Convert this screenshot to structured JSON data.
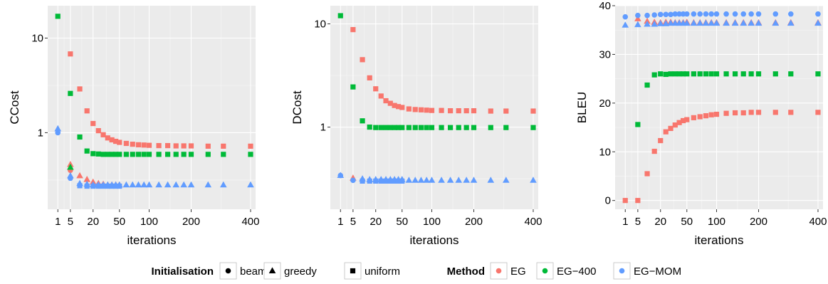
{
  "chart_data": [
    {
      "type": "scatter",
      "xlabel": "iterations",
      "ylabel": "CCost",
      "x_scale": "sqrt",
      "y_scale": "log",
      "xlim": [
        0,
        420
      ],
      "ylim": [
        0.155,
        22
      ],
      "x_ticks": [
        1,
        5,
        20,
        50,
        100,
        200,
        400
      ],
      "x_tick_labels": [
        "1",
        "5",
        "20",
        "50",
        "100",
        "200",
        "400"
      ],
      "y_ticks": [
        1,
        10
      ],
      "y_tick_labels": [
        "1",
        "10"
      ],
      "grid": true,
      "series": [
        {
          "initialisation": "beam",
          "method": "EG",
          "x": [
            5
          ],
          "y": [
            0.4
          ]
        },
        {
          "initialisation": "greedy",
          "method": "EG",
          "x": [
            5,
            10,
            15,
            20,
            25,
            30,
            35,
            40,
            45,
            50
          ],
          "y": [
            0.46,
            0.35,
            0.32,
            0.3,
            0.29,
            0.285,
            0.28,
            0.28,
            0.28,
            0.28
          ]
        },
        {
          "initialisation": "uniform",
          "method": "EG",
          "x": [
            5,
            10,
            15,
            20,
            25,
            30,
            35,
            40,
            45,
            50,
            60,
            70,
            80,
            90,
            100,
            120,
            140,
            160,
            180,
            200,
            250,
            300,
            400
          ],
          "y": [
            6.8,
            2.9,
            1.7,
            1.25,
            1.05,
            0.95,
            0.88,
            0.84,
            0.81,
            0.79,
            0.77,
            0.755,
            0.745,
            0.74,
            0.735,
            0.73,
            0.73,
            0.725,
            0.725,
            0.725,
            0.72,
            0.72,
            0.72
          ]
        },
        {
          "initialisation": "greedy",
          "method": "EG-400",
          "x": [
            5
          ],
          "y": [
            0.43
          ]
        },
        {
          "initialisation": "uniform",
          "method": "EG-400",
          "x": [
            1,
            5,
            10,
            15,
            20,
            25,
            30,
            35,
            40,
            45,
            50,
            60,
            70,
            80,
            90,
            100,
            120,
            140,
            160,
            180,
            200,
            250,
            300,
            400
          ],
          "y": [
            17,
            2.6,
            0.9,
            0.64,
            0.6,
            0.595,
            0.59,
            0.59,
            0.59,
            0.59,
            0.59,
            0.59,
            0.59,
            0.59,
            0.59,
            0.59,
            0.59,
            0.59,
            0.59,
            0.59,
            0.59,
            0.59,
            0.59,
            0.59
          ]
        },
        {
          "initialisation": "beam",
          "method": "EG-MOM",
          "x": [
            1,
            5
          ],
          "y": [
            1.0,
            0.33
          ]
        },
        {
          "initialisation": "greedy",
          "method": "EG-MOM",
          "x": [
            1,
            5,
            10,
            15,
            20,
            25,
            30,
            35,
            40,
            45,
            50,
            60,
            70,
            80,
            90,
            100,
            120,
            140,
            160,
            180,
            200,
            250,
            300,
            400
          ],
          "y": [
            1.1,
            0.35,
            0.29,
            0.285,
            0.28,
            0.28,
            0.28,
            0.28,
            0.28,
            0.28,
            0.28,
            0.28,
            0.28,
            0.28,
            0.28,
            0.28,
            0.28,
            0.28,
            0.28,
            0.28,
            0.28,
            0.28,
            0.28,
            0.28
          ]
        },
        {
          "initialisation": "uniform",
          "method": "EG-MOM",
          "x": [
            10,
            15,
            20,
            25,
            30,
            35,
            40,
            45,
            50
          ],
          "y": [
            0.275,
            0.272,
            0.272,
            0.272,
            0.272,
            0.272,
            0.272,
            0.272,
            0.272
          ]
        }
      ]
    },
    {
      "type": "scatter",
      "xlabel": "iterations",
      "ylabel": "DCost",
      "x_scale": "sqrt",
      "y_scale": "log",
      "xlim": [
        0,
        420
      ],
      "ylim": [
        0.16,
        15
      ],
      "x_ticks": [
        1,
        5,
        20,
        50,
        100,
        200,
        400
      ],
      "x_tick_labels": [
        "1",
        "5",
        "20",
        "50",
        "100",
        "200",
        "400"
      ],
      "y_ticks": [
        1,
        10
      ],
      "y_tick_labels": [
        "1",
        "10"
      ],
      "grid": true,
      "series": [
        {
          "initialisation": "greedy",
          "method": "EG",
          "x": [
            5
          ],
          "y": [
            0.32
          ]
        },
        {
          "initialisation": "uniform",
          "method": "EG",
          "x": [
            5,
            10,
            15,
            20,
            25,
            30,
            35,
            40,
            45,
            50,
            60,
            70,
            80,
            90,
            100,
            120,
            140,
            160,
            180,
            200,
            250,
            300,
            400
          ],
          "y": [
            8.8,
            4.5,
            3.0,
            2.35,
            2.0,
            1.8,
            1.7,
            1.62,
            1.58,
            1.55,
            1.5,
            1.48,
            1.47,
            1.46,
            1.45,
            1.45,
            1.44,
            1.44,
            1.44,
            1.44,
            1.43,
            1.43,
            1.43
          ]
        },
        {
          "initialisation": "uniform",
          "method": "EG-400",
          "x": [
            1,
            5,
            10,
            15,
            20,
            25,
            30,
            35,
            40,
            45,
            50,
            60,
            70,
            80,
            90,
            100,
            120,
            140,
            160,
            180,
            200,
            250,
            300,
            400
          ],
          "y": [
            12,
            2.45,
            1.15,
            1.0,
            0.99,
            0.99,
            0.99,
            0.99,
            0.99,
            0.99,
            0.99,
            0.99,
            0.99,
            0.99,
            0.99,
            0.99,
            0.99,
            0.99,
            0.99,
            0.99,
            0.99,
            0.99,
            0.99,
            0.99
          ]
        },
        {
          "initialisation": "beam",
          "method": "EG-MOM",
          "x": [
            1,
            5
          ],
          "y": [
            0.34,
            0.305
          ]
        },
        {
          "initialisation": "greedy",
          "method": "EG-MOM",
          "x": [
            1,
            10,
            15,
            20,
            25,
            30,
            35,
            40,
            45,
            50,
            60,
            70,
            80,
            90,
            100,
            120,
            140,
            160,
            180,
            200,
            250,
            300,
            400
          ],
          "y": [
            0.34,
            0.315,
            0.31,
            0.31,
            0.31,
            0.31,
            0.31,
            0.31,
            0.31,
            0.31,
            0.305,
            0.305,
            0.305,
            0.305,
            0.305,
            0.305,
            0.305,
            0.305,
            0.305,
            0.305,
            0.305,
            0.305,
            0.305
          ]
        },
        {
          "initialisation": "uniform",
          "method": "EG-MOM",
          "x": [
            10,
            15,
            20,
            25,
            30,
            35,
            40,
            45,
            50
          ],
          "y": [
            0.3,
            0.3,
            0.3,
            0.3,
            0.3,
            0.3,
            0.3,
            0.3,
            0.3
          ]
        }
      ]
    },
    {
      "type": "scatter",
      "xlabel": "iterations",
      "ylabel": "BLEU",
      "x_scale": "sqrt",
      "y_scale": "linear",
      "xlim": [
        0,
        420
      ],
      "ylim": [
        -1.8,
        40
      ],
      "x_ticks": [
        1,
        5,
        20,
        50,
        100,
        200,
        400
      ],
      "x_tick_labels": [
        "1",
        "5",
        "20",
        "50",
        "100",
        "200",
        "400"
      ],
      "y_ticks": [
        0,
        10,
        20,
        30,
        40
      ],
      "y_tick_labels": [
        "0",
        "10",
        "20",
        "30",
        "40"
      ],
      "grid": true,
      "series": [
        {
          "initialisation": "greedy",
          "method": "EG",
          "x": [
            5,
            10,
            15,
            20,
            25,
            30,
            35,
            40,
            45,
            50,
            60,
            70,
            80,
            90,
            100,
            120,
            140,
            160,
            180,
            200,
            250,
            300,
            400
          ],
          "y": [
            37.3,
            36.8,
            36.6,
            36.5,
            36.6,
            36.6,
            36.5,
            36.5,
            36.5,
            36.6,
            36.5,
            36.5,
            36.5,
            36.5,
            36.5,
            36.5,
            36.5,
            36.5,
            36.5,
            36.5,
            36.5,
            36.5,
            36.5
          ]
        },
        {
          "initialisation": "uniform",
          "method": "EG",
          "x": [
            1,
            5,
            10,
            15,
            20,
            25,
            30,
            35,
            40,
            45,
            50,
            60,
            70,
            80,
            90,
            100,
            120,
            140,
            160,
            180,
            200,
            250,
            300,
            400
          ],
          "y": [
            0,
            0,
            5.5,
            10.1,
            12.3,
            14.1,
            14.8,
            15.5,
            16.0,
            16.4,
            16.6,
            17.0,
            17.2,
            17.4,
            17.6,
            17.7,
            17.9,
            18.0,
            18.0,
            18.1,
            18.1,
            18.1,
            18.1,
            18.1
          ]
        },
        {
          "initialisation": "uniform",
          "method": "EG-400",
          "x": [
            5,
            10,
            15,
            20,
            25,
            30,
            35,
            40,
            45,
            50,
            60,
            70,
            80,
            90,
            100,
            120,
            140,
            160,
            180,
            200,
            250,
            300,
            400
          ],
          "y": [
            15.6,
            23.7,
            25.8,
            26.0,
            25.9,
            26.0,
            26.0,
            26.0,
            26.0,
            26.0,
            26.0,
            26.0,
            26.0,
            26.0,
            26.0,
            26.0,
            26.0,
            26.0,
            26.0,
            26.0,
            26.0,
            26.0,
            26.0
          ]
        },
        {
          "initialisation": "beam",
          "method": "EG-MOM",
          "x": [
            1,
            5,
            10,
            15,
            20,
            25,
            30,
            35,
            40,
            45,
            50,
            60,
            70,
            80,
            90,
            100,
            120,
            140,
            160,
            180,
            200,
            250,
            300,
            400
          ],
          "y": [
            37.7,
            38.0,
            38.0,
            38.1,
            38.2,
            38.2,
            38.2,
            38.3,
            38.3,
            38.3,
            38.3,
            38.3,
            38.3,
            38.3,
            38.3,
            38.3,
            38.3,
            38.3,
            38.3,
            38.3,
            38.3,
            38.3,
            38.3,
            38.3
          ]
        },
        {
          "initialisation": "greedy",
          "method": "EG-MOM",
          "x": [
            1,
            5,
            10,
            15,
            20,
            25,
            30,
            35,
            40,
            45,
            50,
            60,
            70,
            80,
            90,
            100,
            120,
            140,
            160,
            180,
            200,
            250,
            300,
            400
          ],
          "y": [
            36.0,
            36.1,
            36.2,
            36.2,
            36.3,
            36.3,
            36.4,
            36.4,
            36.4,
            36.4,
            36.4,
            36.4,
            36.4,
            36.4,
            36.4,
            36.4,
            36.4,
            36.4,
            36.4,
            36.4,
            36.4,
            36.4,
            36.4,
            36.4
          ]
        }
      ]
    }
  ],
  "legend": {
    "placement": "bottom",
    "initialisation_title": "Initialisation",
    "initialisation_items": [
      {
        "label": "beam",
        "shape": "circle"
      },
      {
        "label": "greedy",
        "shape": "triangle"
      },
      {
        "label": "uniform",
        "shape": "square"
      }
    ],
    "method_title": "Method",
    "method_items": [
      {
        "label": "EG",
        "color": "#F8766D"
      },
      {
        "label": "EG−400",
        "color": "#00BA38"
      },
      {
        "label": "EG−MOM",
        "color": "#619CFF"
      }
    ]
  },
  "colors": {
    "panel_background": "#EBEBEB",
    "grid_major": "#FFFFFF",
    "grid_minor": "#F5F5F5",
    "EG": "#F8766D",
    "EG-400": "#00BA38",
    "EG-MOM": "#619CFF",
    "shape_key": "#000000"
  }
}
